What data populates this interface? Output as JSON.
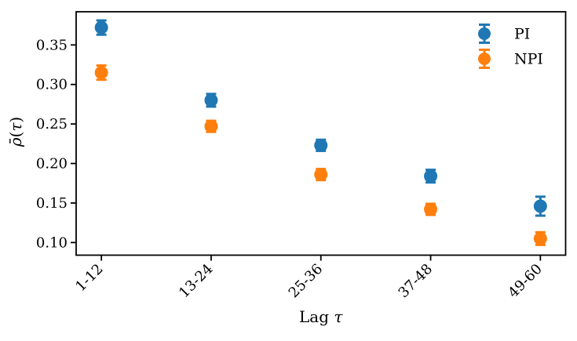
{
  "chart_data": {
    "type": "scatter",
    "title": "",
    "xlabel": "Lag τ",
    "ylabel": "ρ̄(τ)",
    "categories": [
      "1-12",
      "13-24",
      "25-36",
      "37-48",
      "49-60"
    ],
    "series": [
      {
        "name": "PI",
        "color": "#1f77b4",
        "values": [
          0.372,
          0.28,
          0.223,
          0.184,
          0.146
        ],
        "errors": [
          0.009,
          0.008,
          0.007,
          0.008,
          0.012
        ]
      },
      {
        "name": "NPI",
        "color": "#ff7f0e",
        "values": [
          0.315,
          0.247,
          0.186,
          0.142,
          0.105
        ],
        "errors": [
          0.009,
          0.007,
          0.007,
          0.007,
          0.008
        ]
      }
    ],
    "ylim": [
      0.084,
      0.392
    ],
    "yticks": [
      0.1,
      0.15,
      0.2,
      0.25,
      0.3,
      0.35
    ],
    "grid": false,
    "legend_position": "upper right",
    "marker_style": "circle-with-error-bars",
    "axis_color": "#000000",
    "background_color": "#ffffff"
  }
}
